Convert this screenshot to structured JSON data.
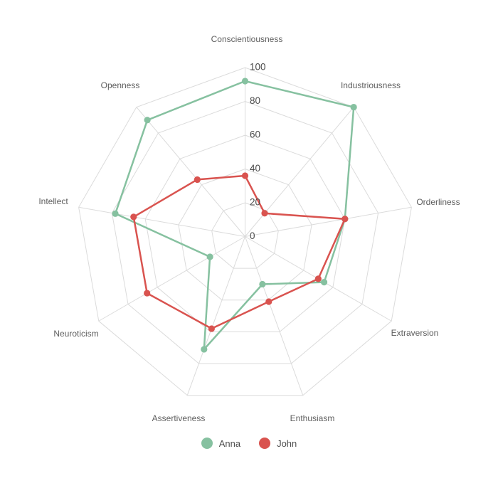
{
  "chart_data": {
    "type": "radar",
    "categories": [
      "Conscientiousness",
      "Industriousness",
      "Orderliness",
      "Extraversion",
      "Enthusiasm",
      "Assertiveness",
      "Neuroticism",
      "Intellect",
      "Openness"
    ],
    "series": [
      {
        "name": "Anna",
        "color": "#86C1A0",
        "values": [
          92,
          100,
          60,
          54,
          30,
          71,
          24,
          78,
          90
        ]
      },
      {
        "name": "John",
        "color": "#D9534F",
        "values": [
          36,
          18,
          60,
          50,
          41,
          58,
          67,
          67,
          44
        ]
      }
    ],
    "radial_axis": {
      "min": 0,
      "max": 100,
      "tick_interval": 20,
      "tick_labels": [
        "0",
        "20",
        "40",
        "60",
        "80",
        "100"
      ]
    },
    "grid": {
      "rings": [
        20,
        40,
        60,
        80,
        100
      ],
      "color": "#DBDBDB",
      "shape": "polygon"
    },
    "legend": {
      "position": "bottom",
      "entries": [
        "Anna",
        "John"
      ]
    },
    "title": "",
    "background": "#FFFFFF"
  }
}
